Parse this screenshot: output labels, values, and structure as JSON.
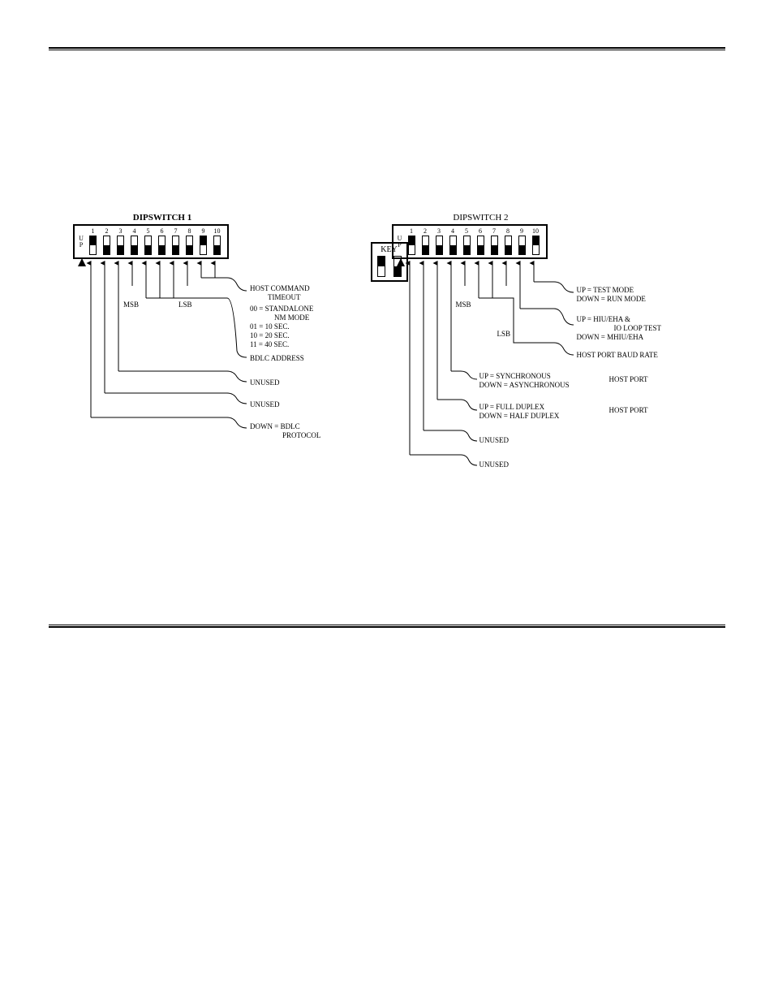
{
  "dip1": {
    "title": "DIPSWITCH 1",
    "up_label_1": "U",
    "up_label_2": "P",
    "switches": [
      {
        "n": "1",
        "pos": "up"
      },
      {
        "n": "2",
        "pos": "down"
      },
      {
        "n": "3",
        "pos": "down"
      },
      {
        "n": "4",
        "pos": "down"
      },
      {
        "n": "5",
        "pos": "down"
      },
      {
        "n": "6",
        "pos": "down"
      },
      {
        "n": "7",
        "pos": "down"
      },
      {
        "n": "8",
        "pos": "down"
      },
      {
        "n": "9",
        "pos": "up"
      },
      {
        "n": "10",
        "pos": "down"
      }
    ],
    "msb": "MSB",
    "lsb": "LSB",
    "ann_timeout_title": "HOST COMMAND",
    "ann_timeout_sub": "TIMEOUT",
    "ann_timeout_00": "00 = STANDALONE",
    "ann_timeout_nm": "NM MODE",
    "ann_timeout_01": "01 = 10 SEC.",
    "ann_timeout_10": "10 = 20 SEC.",
    "ann_timeout_11": "11 = 40 SEC.",
    "ann_bdlc_addr": "BDLC ADDRESS",
    "ann_unused1": "UNUSED",
    "ann_unused2": "UNUSED",
    "ann_proto_1": "DOWN = BDLC",
    "ann_proto_2": "PROTOCOL"
  },
  "key": {
    "title": "KEY"
  },
  "dip2": {
    "title": "DIPSWITCH 2",
    "up_label_1": "U",
    "up_label_2": "P",
    "switches": [
      {
        "n": "1",
        "pos": "up"
      },
      {
        "n": "2",
        "pos": "down"
      },
      {
        "n": "3",
        "pos": "down"
      },
      {
        "n": "4",
        "pos": "down"
      },
      {
        "n": "5",
        "pos": "down"
      },
      {
        "n": "6",
        "pos": "down"
      },
      {
        "n": "7",
        "pos": "down"
      },
      {
        "n": "8",
        "pos": "down"
      },
      {
        "n": "9",
        "pos": "down"
      },
      {
        "n": "10",
        "pos": "up"
      }
    ],
    "msb": "MSB",
    "lsb": "LSB",
    "ann_mode_up": "UP     = TEST MODE",
    "ann_mode_dn": "DOWN  = RUN MODE",
    "ann_test_up1": "UP     = HIU/EHA &",
    "ann_test_up2": "IO LOOP TEST",
    "ann_test_dn": "DOWN  = MHIU/EHA",
    "ann_baud": "HOST PORT BAUD RATE",
    "ann_sync_up": "UP     = SYNCHRONOUS",
    "ann_sync_dn": "DOWN = ASYNCHRONOUS",
    "ann_sync_lbl": "HOST PORT",
    "ann_dup_up": "UP     = FULL DUPLEX",
    "ann_dup_dn": "DOWN  = HALF DUPLEX",
    "ann_dup_lbl": "HOST PORT",
    "ann_unused1": "UNUSED",
    "ann_unused2": "UNUSED"
  }
}
